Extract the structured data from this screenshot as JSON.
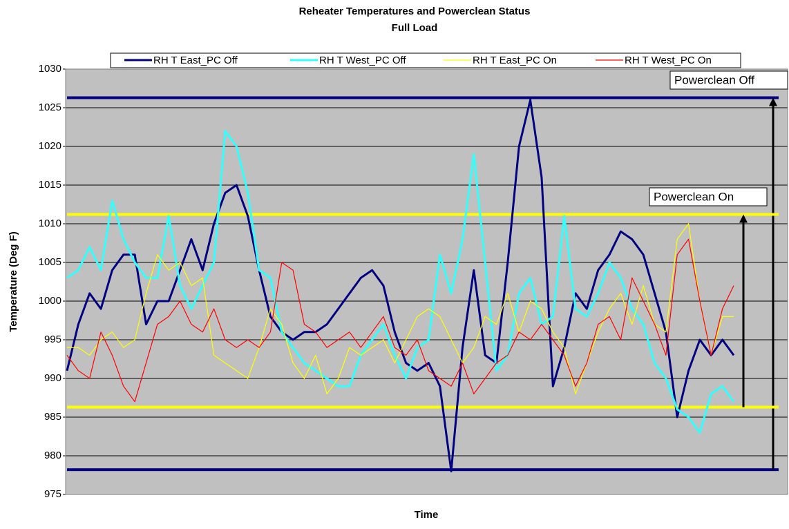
{
  "chart_data": {
    "type": "line",
    "title": "Reheater Temperatures and Powerclean Status",
    "subtitle": "Full Load",
    "x_label": "Time",
    "y_label": "Temperature (Deg F)",
    "categories": [
      null,
      null,
      null,
      null,
      null,
      null,
      null,
      null,
      null,
      null,
      null,
      null,
      null,
      null,
      null,
      null,
      null,
      null,
      null,
      null,
      null,
      null,
      null,
      null,
      null,
      null,
      null,
      null,
      null,
      null,
      null,
      null,
      null,
      null,
      null,
      null,
      null,
      null,
      null,
      null,
      null,
      null,
      null,
      null,
      null,
      null,
      null,
      null,
      null,
      null,
      null,
      null,
      null,
      null,
      null,
      null,
      null,
      null,
      null,
      null
    ],
    "ylim": [
      975,
      1030
    ],
    "yticks": [
      975,
      980,
      985,
      990,
      995,
      1000,
      1005,
      1010,
      1015,
      1020,
      1025,
      1030
    ],
    "grid": true,
    "legend": "top",
    "series": [
      {
        "name": "RH T East_PC Off",
        "color": "#000080",
        "values": [
          991,
          997,
          1001,
          999,
          1004,
          1006,
          1006,
          997,
          1000,
          1000,
          1004,
          1008,
          1004,
          1010,
          1014,
          1015,
          1011,
          1004,
          998,
          996,
          995,
          996,
          996,
          997,
          999,
          1001,
          1003,
          1004,
          1002,
          996,
          992,
          991,
          992,
          989,
          978,
          994,
          1004,
          993,
          992,
          1005,
          1020,
          1026,
          1016,
          989,
          994,
          1001,
          999,
          1004,
          1006,
          1009,
          1008,
          1006,
          1001,
          996,
          985,
          991,
          995,
          993,
          995,
          993
        ]
      },
      {
        "name": "RH T West_PC Off",
        "color": "#33ffff",
        "values": [
          1003,
          1004,
          1007,
          1004,
          1013,
          1008,
          1005,
          1003,
          1003,
          1011,
          1002,
          999,
          1002,
          1005,
          1022,
          1020,
          1014,
          1004,
          1003,
          996,
          994,
          992,
          991,
          990,
          989,
          989,
          993,
          995,
          997,
          993,
          990,
          994,
          995,
          1006,
          1001,
          1008,
          1019,
          1005,
          991,
          993,
          1001,
          1003,
          997,
          998,
          1011,
          999,
          998,
          1001,
          1005,
          1003,
          999,
          997,
          992,
          990,
          986,
          985,
          983,
          988,
          989,
          987
        ]
      },
      {
        "name": "RH T East_PC On",
        "color": "#ffff00",
        "values": [
          994,
          994,
          993,
          995,
          996,
          994,
          995,
          1001,
          1006,
          1004,
          1005,
          1002,
          1003,
          993,
          992,
          991,
          990,
          994,
          999,
          997,
          992,
          990,
          993,
          988,
          990,
          994,
          993,
          994,
          995,
          992,
          995,
          998,
          999,
          998,
          995,
          992,
          994,
          998,
          997,
          1001,
          996,
          1000,
          999,
          996,
          994,
          988,
          992,
          996,
          999,
          1001,
          997,
          1002,
          997,
          996,
          1008,
          1010,
          1000,
          993,
          998,
          998
        ]
      },
      {
        "name": "RH T West_PC On",
        "color": "#ff0000",
        "values": [
          993,
          991,
          990,
          996,
          993,
          989,
          987,
          992,
          997,
          998,
          1000,
          997,
          996,
          999,
          995,
          994,
          995,
          994,
          996,
          1005,
          1004,
          997,
          996,
          994,
          995,
          996,
          994,
          996,
          998,
          994,
          993,
          995,
          991,
          990,
          989,
          992,
          988,
          990,
          992,
          993,
          996,
          995,
          997,
          995,
          993,
          989,
          992,
          997,
          998,
          995,
          1003,
          1000,
          997,
          993,
          1006,
          1008,
          1000,
          993,
          999,
          1002
        ]
      }
    ],
    "annotations": [
      {
        "text": "Powerclean Off",
        "low": 978.2,
        "high": 1026.3,
        "color": "#000080"
      },
      {
        "text": "Powerclean On",
        "low": 986.3,
        "high": 1011.2,
        "color": "#ffff00"
      }
    ]
  }
}
